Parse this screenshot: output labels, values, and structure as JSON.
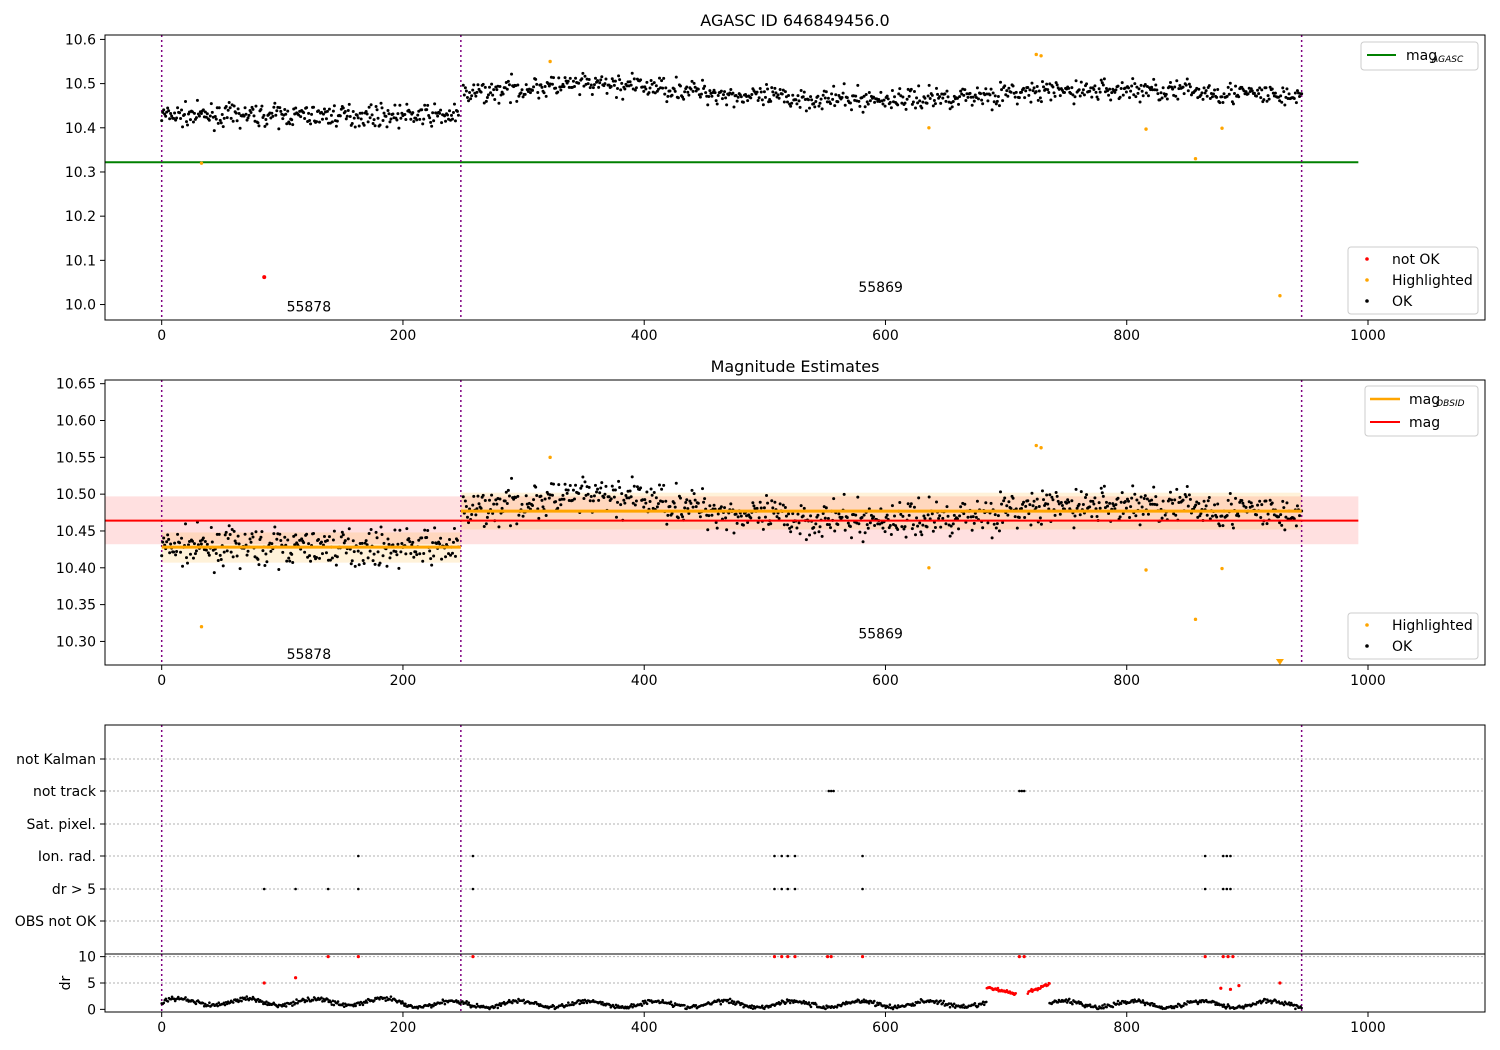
{
  "chart_data": [
    {
      "type": "scatter",
      "title": "AGASC ID 646849456.0",
      "xlim": [
        -47,
        1097
      ],
      "ylim": [
        9.965,
        10.61
      ],
      "xticks": [
        "0",
        "200",
        "400",
        "600",
        "800",
        "1000"
      ],
      "yticks": [
        "10.0",
        "10.1",
        "10.2",
        "10.3",
        "10.4",
        "10.5",
        "10.6"
      ],
      "vlines": [
        0,
        248,
        945
      ],
      "hline": {
        "name": "mag_AGASC",
        "y": 10.322,
        "xrange": [
          -47,
          992
        ],
        "color": "#008000"
      },
      "annotations": [
        {
          "text": "55878",
          "x": 122,
          "y": 9.995
        },
        {
          "text": "55869",
          "x": 596,
          "y": 10.04
        }
      ],
      "series": [
        {
          "name": "not OK",
          "color": "#ff0000",
          "points": [
            [
              85,
              10.062
            ]
          ]
        },
        {
          "name": "Highlighted",
          "color": "#ffa500",
          "points": [
            [
              33,
              10.32
            ],
            [
              322,
              10.55
            ],
            [
              636,
              10.4
            ],
            [
              725,
              10.566
            ],
            [
              729,
              10.563
            ],
            [
              816,
              10.397
            ],
            [
              857,
              10.33
            ],
            [
              879,
              10.399
            ],
            [
              927,
              10.02
            ]
          ]
        },
        {
          "name": "OK",
          "color": "#000000",
          "segments": [
            {
              "x0": 0,
              "x1": 246,
              "n": 300,
              "mean": 10.428,
              "spread": 0.03
            },
            {
              "x0": 250,
              "x1": 945,
              "n": 800,
              "mean": 10.475,
              "spread": 0.032
            }
          ]
        }
      ],
      "legend": [
        "mag_AGASC",
        "not OK",
        "Highlighted",
        "OK"
      ]
    },
    {
      "type": "scatter",
      "title": "Magnitude Estimates",
      "xlim": [
        -47,
        1097
      ],
      "ylim": [
        10.268,
        10.655
      ],
      "xticks": [
        "0",
        "200",
        "400",
        "600",
        "800",
        "1000"
      ],
      "yticks": [
        "10.30",
        "10.35",
        "10.40",
        "10.45",
        "10.50",
        "10.55",
        "10.60",
        "10.65"
      ],
      "vlines": [
        0,
        248,
        945
      ],
      "mag": {
        "name": "mag",
        "y": 10.464,
        "band": [
          10.432,
          10.497
        ],
        "xrange": [
          -47,
          992
        ],
        "color": "#ff0000"
      },
      "mag_obsid": [
        {
          "x0": 0,
          "x1": 248,
          "y": 10.428,
          "band": [
            10.407,
            10.448
          ]
        },
        {
          "x0": 248,
          "x1": 945,
          "y": 10.477,
          "band": [
            10.452,
            10.502
          ]
        }
      ],
      "annotations": [
        {
          "text": "55878",
          "x": 122,
          "y": 10.283
        },
        {
          "text": "55869",
          "x": 596,
          "y": 10.311
        }
      ],
      "series": [
        {
          "name": "Highlighted",
          "color": "#ffa500",
          "points": [
            [
              33,
              10.32
            ],
            [
              322,
              10.55
            ],
            [
              636,
              10.4
            ],
            [
              725,
              10.566
            ],
            [
              729,
              10.563
            ],
            [
              816,
              10.397
            ],
            [
              857,
              10.33
            ],
            [
              879,
              10.399
            ]
          ]
        },
        {
          "name": "OK",
          "color": "#000000"
        }
      ],
      "offscale_marker": {
        "x": 927,
        "color": "#ffa500"
      },
      "legend": [
        "mag_OBSID",
        "mag",
        "Highlighted",
        "OK"
      ]
    },
    {
      "type": "scatter",
      "title": "",
      "xlim": [
        -47,
        1097
      ],
      "yticks": [
        "not Kalman",
        "not track",
        "Sat. pixel.",
        "Ion. rad.",
        "dr > 5",
        "OBS not OK"
      ],
      "vlines": [
        0,
        248,
        945
      ],
      "flags": {
        "not track": [
          553,
          555,
          557,
          711,
          713,
          715
        ],
        "Ion. rad.": [
          163,
          258,
          508,
          514,
          519,
          525,
          581,
          865,
          880,
          883,
          886
        ],
        "dr > 5": [
          85,
          111,
          138,
          163,
          258,
          508,
          514,
          519,
          525,
          581,
          865,
          880,
          883,
          886
        ]
      }
    },
    {
      "type": "scatter",
      "ylabel": "dr",
      "xlim": [
        -47,
        1097
      ],
      "ylim": [
        -0.5,
        10.5
      ],
      "xticks": [
        "0",
        "200",
        "400",
        "600",
        "800",
        "1000"
      ],
      "yticks": [
        "0",
        "5",
        "10"
      ],
      "vlines": [
        0,
        248,
        945
      ],
      "red_points": [
        [
          85,
          5
        ],
        [
          111,
          6
        ],
        [
          138,
          10
        ],
        [
          163,
          10
        ],
        [
          258,
          10
        ],
        [
          508,
          10
        ],
        [
          514,
          10
        ],
        [
          519,
          10
        ],
        [
          525,
          10
        ],
        [
          552,
          10
        ],
        [
          555,
          10
        ],
        [
          581,
          10
        ],
        [
          711,
          10
        ],
        [
          715,
          10
        ],
        [
          865,
          10
        ],
        [
          880,
          10
        ],
        [
          884,
          10
        ],
        [
          888,
          10
        ],
        [
          893,
          4.5
        ],
        [
          927,
          5
        ],
        [
          878,
          4
        ],
        [
          886,
          3.8
        ]
      ]
    }
  ]
}
